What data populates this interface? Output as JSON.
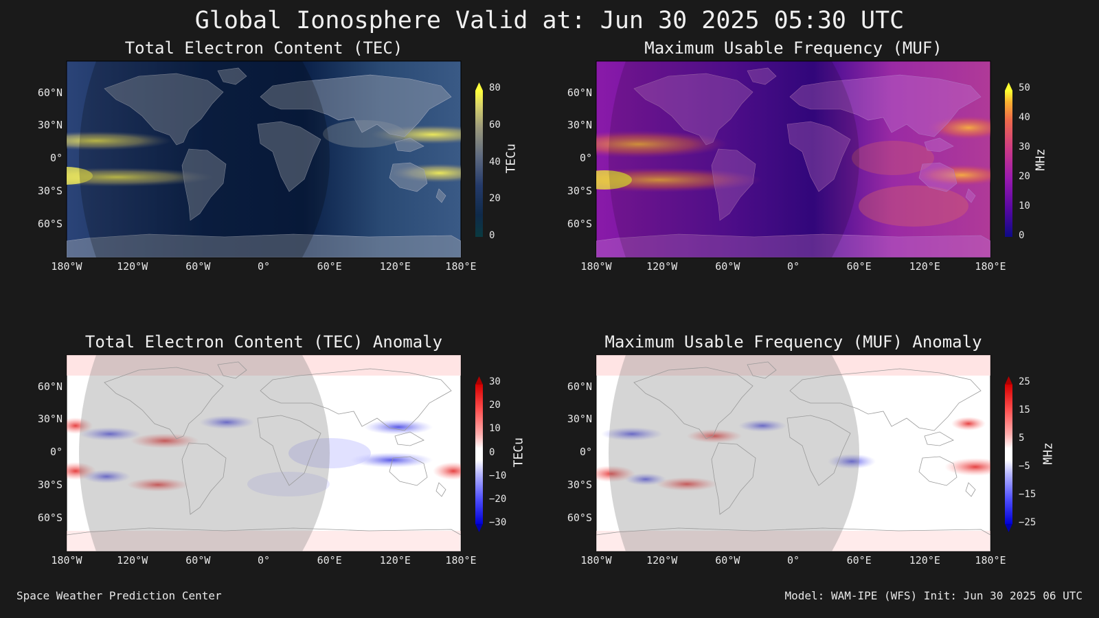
{
  "title": "Global Ionosphere Valid at: Jun 30 2025 05:30 UTC",
  "footer": {
    "left": "Space Weather Prediction Center",
    "right": "Model: WAM-IPE (WFS) Init: Jun 30 2025 06 UTC"
  },
  "axes": {
    "lat_ticks": [
      "60°N",
      "30°N",
      "0°",
      "30°S",
      "60°S"
    ],
    "lon_ticks": [
      "180°W",
      "120°W",
      "60°W",
      "0°",
      "60°E",
      "120°E",
      "180°E"
    ]
  },
  "panels": [
    {
      "id": "tec",
      "title": "Total Electron Content (TEC)",
      "colorbar": {
        "unit": "TECu",
        "ticks": [
          "80",
          "60",
          "40",
          "20",
          "0"
        ],
        "colors": [
          "#ffff3c",
          "#d8d36a",
          "#9c9a7c",
          "#5e6a80",
          "#243a6a",
          "#0f2a4a",
          "#0a3a40"
        ]
      }
    },
    {
      "id": "muf",
      "title": "Maximum Usable Frequency (MUF)",
      "colorbar": {
        "unit": "MHz",
        "ticks": [
          "50",
          "40",
          "30",
          "20",
          "10",
          "0"
        ],
        "colors": [
          "#ffff30",
          "#fbb030",
          "#ef6a4a",
          "#cc3a86",
          "#9a1ab0",
          "#5a08a4",
          "#0d0a86"
        ]
      }
    },
    {
      "id": "tec-anomaly",
      "title": "Total Electron Content (TEC) Anomaly",
      "colorbar": {
        "unit": "TECu",
        "ticks": [
          "30",
          "20",
          "10",
          "0",
          "−10",
          "−20",
          "−30"
        ],
        "colors": [
          "#d60000",
          "#ff5050",
          "#ffb0b0",
          "#ffffff",
          "#b8b8ff",
          "#5050ff",
          "#0000d6"
        ]
      }
    },
    {
      "id": "muf-anomaly",
      "title": "Maximum Usable Frequency (MUF) Anomaly",
      "colorbar": {
        "unit": "MHz",
        "ticks": [
          "25",
          "15",
          "5",
          "−5",
          "−15",
          "−25"
        ],
        "colors": [
          "#d60000",
          "#ff5050",
          "#ffb0b0",
          "#ffffff",
          "#b8b8ff",
          "#5050ff",
          "#0000d6"
        ]
      }
    }
  ]
}
